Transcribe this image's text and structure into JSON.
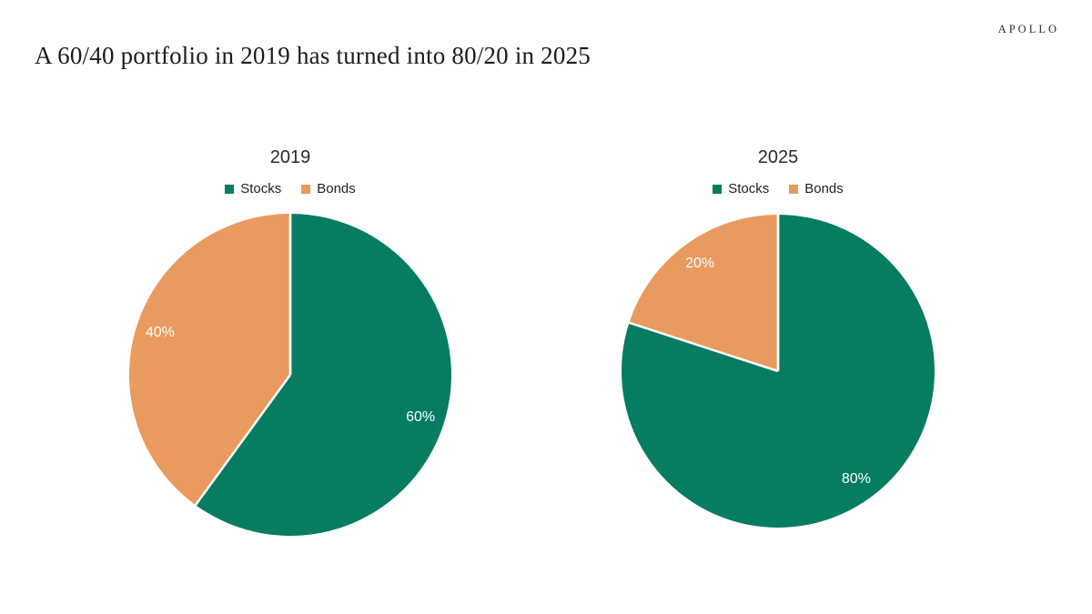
{
  "header": {
    "title": "A 60/40 portfolio in 2019 has turned into 80/20 in 2025",
    "logo": "APOLLO"
  },
  "colors": {
    "stocks_green": "#067C62",
    "bonds_orange": "#E99A5E",
    "data_label_text": "#FFFFFF",
    "title_text": "#1B1B1B"
  },
  "chart_data": [
    {
      "type": "pie",
      "title": "2019",
      "categories": [
        "Stocks",
        "Bonds"
      ],
      "values": [
        60,
        40
      ],
      "data_labels": [
        "60%",
        "40%"
      ],
      "colors": [
        "#067C62",
        "#E99A5E"
      ],
      "legend": [
        "Stocks",
        "Bonds"
      ],
      "legend_position": "top",
      "start_angle": "12-oclock",
      "direction": "clockwise"
    },
    {
      "type": "pie",
      "title": "2025",
      "categories": [
        "Stocks",
        "Bonds"
      ],
      "values": [
        80,
        20
      ],
      "data_labels": [
        "80%",
        "20%"
      ],
      "colors": [
        "#067C62",
        "#E99A5E"
      ],
      "legend": [
        "Stocks",
        "Bonds"
      ],
      "legend_position": "top",
      "start_angle": "12-oclock",
      "direction": "clockwise"
    }
  ]
}
